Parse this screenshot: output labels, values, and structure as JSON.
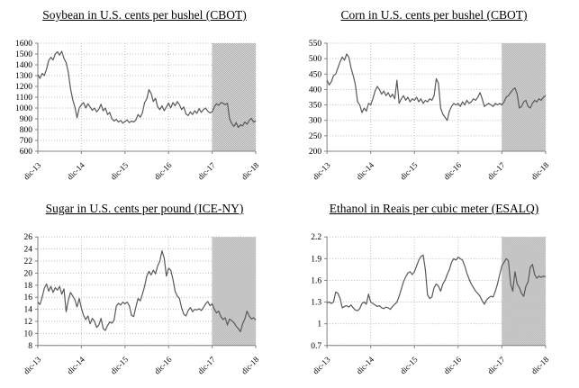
{
  "page": {
    "background": "#ffffff",
    "description_layout": "2x2 grid of commodity price line charts with shaded forecast band"
  },
  "style": {
    "line_color": "#595959",
    "grid_color": "#bdbdbd",
    "axis_color": "#808080",
    "text_color": "#000000",
    "forecast_fill_light": "#d6d6d6",
    "forecast_fill_dark": "#b2b2b2"
  },
  "chart_data": [
    {
      "type": "line",
      "title": "Soybean in U.S. cents per bushel (CBOT)",
      "x_tick_labels": [
        "dic-13",
        "dic-14",
        "dic-15",
        "dic-16",
        "dic-17",
        "dic-18"
      ],
      "ylim": [
        600,
        1600
      ],
      "ytick_labels": [
        "600",
        "700",
        "800",
        "900",
        "1000",
        "1100",
        "1200",
        "1300",
        "1400",
        "1500",
        "1600"
      ],
      "grid": true,
      "legend": false,
      "forecast_region": {
        "start_label": "dic-17",
        "end_label": "dic-18",
        "start_fraction": 0.8
      },
      "values": [
        1310,
        1275,
        1320,
        1300,
        1360,
        1440,
        1470,
        1445,
        1500,
        1520,
        1490,
        1525,
        1460,
        1420,
        1330,
        1180,
        1080,
        1010,
        910,
        1000,
        1030,
        1050,
        1000,
        1040,
        1010,
        980,
        1000,
        965,
        990,
        1035,
        975,
        1000,
        940,
        960,
        900,
        880,
        895,
        870,
        885,
        860,
        875,
        890,
        865,
        880,
        870,
        890,
        940,
        915,
        955,
        1050,
        1085,
        1170,
        1135,
        1060,
        1090,
        1010,
        985,
        1020,
        975,
        1010,
        1045,
        1000,
        1050,
        1020,
        1060,
        1030,
        985,
        1010,
        945,
        930,
        965,
        940,
        975,
        950,
        995,
        960,
        985,
        1000,
        970,
        955,
        965,
        1010,
        1040,
        1025,
        1050,
        1045,
        1030,
        1045,
        900,
        855,
        830,
        865,
        820,
        845,
        835,
        870,
        850,
        885,
        905,
        870,
        880
      ]
    },
    {
      "type": "line",
      "title": "Corn in U.S. cents per bushel (CBOT)",
      "x_tick_labels": [
        "dic-13",
        "dic-14",
        "dic-15",
        "dic-16",
        "dic-17",
        "dic-18"
      ],
      "ylim": [
        200,
        550
      ],
      "ytick_labels": [
        "200",
        "250",
        "300",
        "350",
        "400",
        "450",
        "500",
        "550"
      ],
      "grid": true,
      "legend": false,
      "forecast_region": {
        "start_label": "dic-17",
        "end_label": "dic-18",
        "start_fraction": 0.8
      },
      "values": [
        430,
        415,
        425,
        445,
        450,
        470,
        490,
        505,
        495,
        515,
        505,
        470,
        445,
        415,
        360,
        350,
        325,
        340,
        330,
        355,
        350,
        370,
        395,
        410,
        400,
        385,
        395,
        380,
        390,
        375,
        385,
        370,
        430,
        355,
        370,
        380,
        365,
        375,
        360,
        370,
        365,
        375,
        360,
        370,
        355,
        365,
        360,
        370,
        365,
        380,
        435,
        420,
        340,
        320,
        310,
        300,
        330,
        345,
        355,
        350,
        355,
        345,
        360,
        350,
        365,
        355,
        360,
        370,
        365,
        375,
        390,
        370,
        345,
        350,
        355,
        350,
        345,
        355,
        350,
        355,
        350,
        360,
        375,
        380,
        390,
        400,
        405,
        385,
        340,
        345,
        360,
        365,
        345,
        340,
        355,
        365,
        360,
        370,
        365,
        375,
        380
      ]
    },
    {
      "type": "line",
      "title": "Sugar in U.S. cents per pound (ICE-NY)",
      "x_tick_labels": [
        "dic-13",
        "dic-14",
        "dic-15",
        "dic-16",
        "dic-17",
        "dic-18"
      ],
      "ylim": [
        8,
        26
      ],
      "ytick_labels": [
        "8",
        "10",
        "12",
        "14",
        "16",
        "18",
        "20",
        "22",
        "24",
        "26"
      ],
      "grid": true,
      "legend": false,
      "forecast_region": {
        "start_label": "dic-17",
        "end_label": "dic-18",
        "start_fraction": 0.8
      },
      "values": [
        15.2,
        14.8,
        16.0,
        17.5,
        18.2,
        17.0,
        17.8,
        16.8,
        17.6,
        17.2,
        17.8,
        16.5,
        17.4,
        13.6,
        15.5,
        16.8,
        16.2,
        15.6,
        14.4,
        15.8,
        14.2,
        13.0,
        12.3,
        12.9,
        11.6,
        12.5,
        12.0,
        11.0,
        11.4,
        12.5,
        10.8,
        10.5,
        11.3,
        11.9,
        11.7,
        12.2,
        14.5,
        15.0,
        14.7,
        15.2,
        14.9,
        15.2,
        14.6,
        13.0,
        12.8,
        14.4,
        15.8,
        15.4,
        16.5,
        17.8,
        19.5,
        20.3,
        19.7,
        20.5,
        19.9,
        21.2,
        22.0,
        23.7,
        22.5,
        19.5,
        20.8,
        20.5,
        19.0,
        17.0,
        16.2,
        15.8,
        14.2,
        13.2,
        12.9,
        13.8,
        14.3,
        13.6,
        14.0,
        13.9,
        14.1,
        13.8,
        14.3,
        14.9,
        15.3,
        14.6,
        14.9,
        14.0,
        13.4,
        13.7,
        12.8,
        12.3,
        12.6,
        11.4,
        12.4,
        12.1,
        11.8,
        11.2,
        10.8,
        10.3,
        11.6,
        12.4,
        13.7,
        12.9,
        12.4,
        12.6,
        12.2
      ]
    },
    {
      "type": "line",
      "title": "Ethanol in Reais per cubic meter (ESALQ)",
      "x_tick_labels": [
        "dic-13",
        "dic-14",
        "dic-15",
        "dic-16",
        "dic-17",
        "dic-18"
      ],
      "ylim": [
        0.7,
        2.2
      ],
      "ytick_labels": [
        "0.7",
        "1",
        "1.3",
        "1.6",
        "1.9",
        "2.2"
      ],
      "grid": true,
      "legend": false,
      "forecast_region": {
        "start_label": "dic-17",
        "end_label": "dic-18",
        "start_fraction": 0.8
      },
      "values": [
        1.29,
        1.3,
        1.28,
        1.3,
        1.44,
        1.42,
        1.35,
        1.22,
        1.24,
        1.25,
        1.23,
        1.26,
        1.22,
        1.19,
        1.18,
        1.21,
        1.28,
        1.3,
        1.27,
        1.41,
        1.3,
        1.28,
        1.26,
        1.24,
        1.25,
        1.22,
        1.21,
        1.23,
        1.22,
        1.2,
        1.24,
        1.27,
        1.3,
        1.38,
        1.48,
        1.58,
        1.65,
        1.7,
        1.72,
        1.68,
        1.72,
        1.8,
        1.88,
        1.93,
        1.95,
        1.75,
        1.4,
        1.35,
        1.37,
        1.5,
        1.55,
        1.52,
        1.45,
        1.55,
        1.6,
        1.68,
        1.75,
        1.85,
        1.9,
        1.88,
        1.92,
        1.9,
        1.88,
        1.8,
        1.7,
        1.62,
        1.55,
        1.5,
        1.45,
        1.42,
        1.38,
        1.32,
        1.27,
        1.33,
        1.36,
        1.38,
        1.37,
        1.45,
        1.55,
        1.68,
        1.8,
        1.85,
        1.9,
        1.87,
        1.55,
        1.45,
        1.72,
        1.55,
        1.5,
        1.42,
        1.38,
        1.52,
        1.58,
        1.78,
        1.82,
        1.68,
        1.63,
        1.66,
        1.64,
        1.66,
        1.65
      ]
    }
  ]
}
